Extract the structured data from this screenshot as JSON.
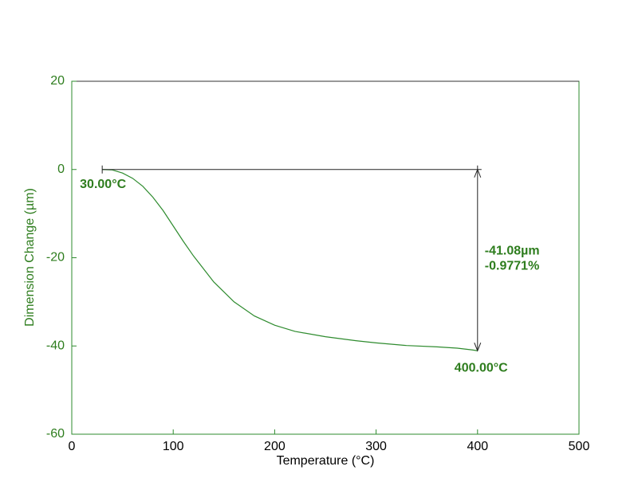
{
  "chart_data": {
    "type": "line",
    "xlabel": "Temperature (°C)",
    "ylabel": "Dimension Change (µm)",
    "series": [
      {
        "name": null,
        "color": "#2e8b2e",
        "x": [
          30,
          40,
          50,
          60,
          70,
          80,
          90,
          100,
          110,
          120,
          140,
          160,
          180,
          200,
          220,
          250,
          280,
          300,
          330,
          360,
          380,
          395,
          400
        ],
        "values": [
          0,
          -0.1,
          -0.8,
          -2.0,
          -3.8,
          -6.3,
          -9.3,
          -12.8,
          -16.3,
          -19.6,
          -25.5,
          -30.0,
          -33.2,
          -35.3,
          -36.7,
          -37.9,
          -38.8,
          -39.3,
          -39.9,
          -40.2,
          -40.5,
          -40.9,
          -41.08
        ]
      }
    ],
    "xlim": [
      0,
      500
    ],
    "xticks": [
      0,
      100,
      200,
      300,
      400,
      500
    ],
    "ylim": [
      -60,
      20
    ],
    "yticks": [
      20,
      0,
      -20,
      -40,
      -60
    ],
    "annotations": {
      "start_label": "30.00°C",
      "end_label": "400.00°C",
      "change_label": "-41.08µm",
      "percent_label": "-0.9771%"
    }
  }
}
